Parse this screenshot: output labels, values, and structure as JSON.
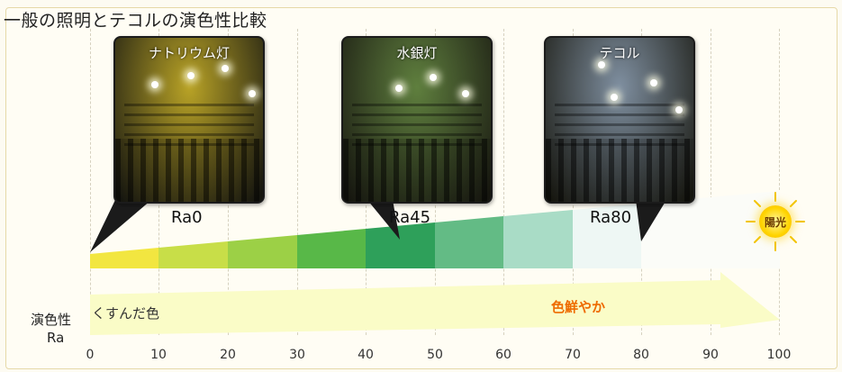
{
  "title": "一般の照明とテコルの演色性比較",
  "photos": [
    {
      "caption": "ナトリウム灯",
      "ra": "Ra0",
      "tint": "#b9a326"
    },
    {
      "caption": "水銀灯",
      "ra": "Ra45",
      "tint": "#5f7f3e"
    },
    {
      "caption": "テコル",
      "ra": "Ra80",
      "tint": "#7f8fa0"
    }
  ],
  "scale": {
    "label": "演色性",
    "unit": "Ra",
    "ticks": [
      "0",
      "10",
      "20",
      "30",
      "40",
      "50",
      "60",
      "70",
      "80",
      "90",
      "100"
    ],
    "left_text": "くすんだ色",
    "right_text": "色鮮やか",
    "sun_label": "陽光"
  },
  "band_colors": [
    "#f2e640",
    "#c8de48",
    "#9cd046",
    "#58b848",
    "#2ea05a",
    "#63bb85",
    "#a9dcc6"
  ]
}
